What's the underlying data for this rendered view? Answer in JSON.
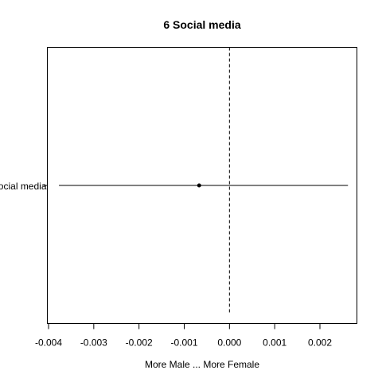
{
  "chart_data": {
    "type": "scatter",
    "title": "6 Social media",
    "xlabel": "More Male ... More Female",
    "ylabel": "",
    "categories": [
      "Social media"
    ],
    "points": [
      {
        "category": "Social media",
        "estimate": -0.00067,
        "lower": -0.00377,
        "upper": 0.00262
      }
    ],
    "xlim": [
      -0.004,
      0.0026
    ],
    "xticks": [
      -0.004,
      -0.003,
      -0.002,
      -0.001,
      0.0,
      0.001,
      0.002
    ],
    "xtick_labels": [
      "-0.004",
      "-0.003",
      "-0.002",
      "-0.001",
      "0.000",
      "0.001",
      "0.002"
    ],
    "reference_line": {
      "x": 0,
      "style": "dashed"
    },
    "grid": false
  }
}
